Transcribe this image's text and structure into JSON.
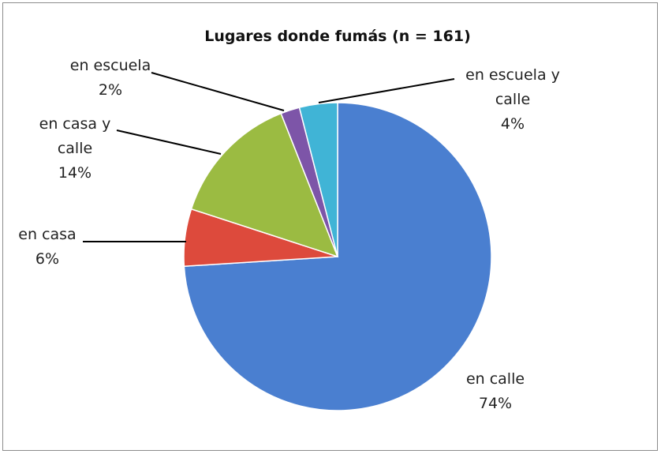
{
  "chart_data": {
    "type": "pie",
    "title": "Lugares donde fumás (n = 161)",
    "categories": [
      "en calle",
      "en casa",
      "en casa y calle",
      "en escuela",
      "en escuela y calle"
    ],
    "values": [
      74,
      6,
      14,
      2,
      4
    ],
    "value_labels": [
      "74%",
      "6%",
      "14%",
      "2%",
      "4%"
    ],
    "colors": [
      "#4a7fd0",
      "#dd4a3c",
      "#9bbb42",
      "#7d55a8",
      "#40b4d6"
    ]
  }
}
